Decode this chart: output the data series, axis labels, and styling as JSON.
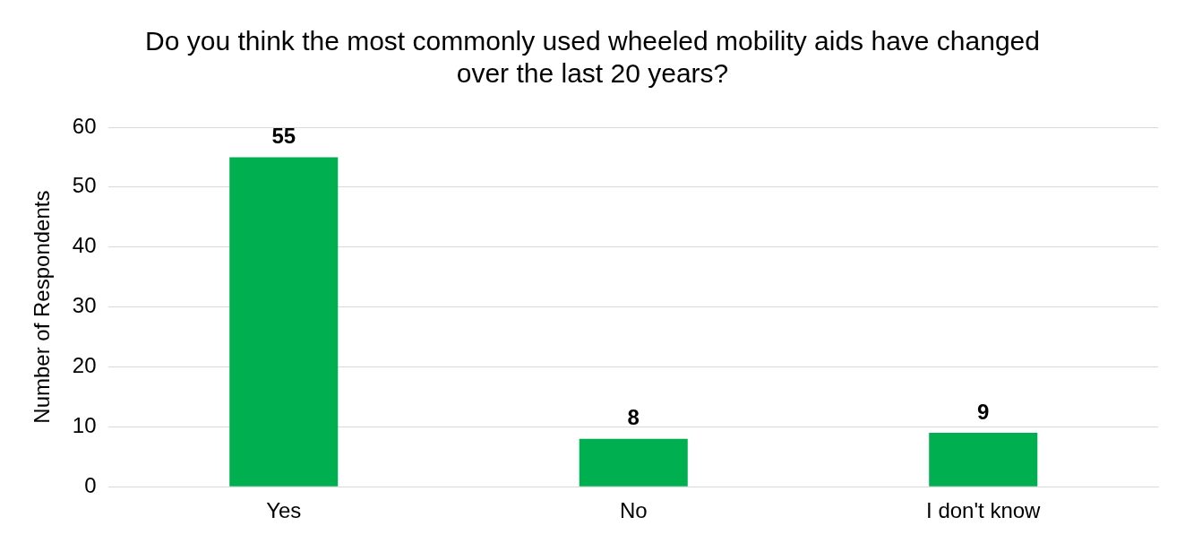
{
  "chart_data": {
    "type": "bar",
    "title": "Do you think the most commonly used wheeled mobility aids have changed over the last 20 years?",
    "ylabel": "Number of Respondents",
    "categories": [
      "Yes",
      "No",
      "I don't know"
    ],
    "values": [
      55,
      8,
      9
    ],
    "color": "#00b050",
    "ylim": [
      0,
      60
    ],
    "yticks": [
      0,
      10,
      20,
      30,
      40,
      50,
      60
    ],
    "grid": "y",
    "data_labels": true
  }
}
